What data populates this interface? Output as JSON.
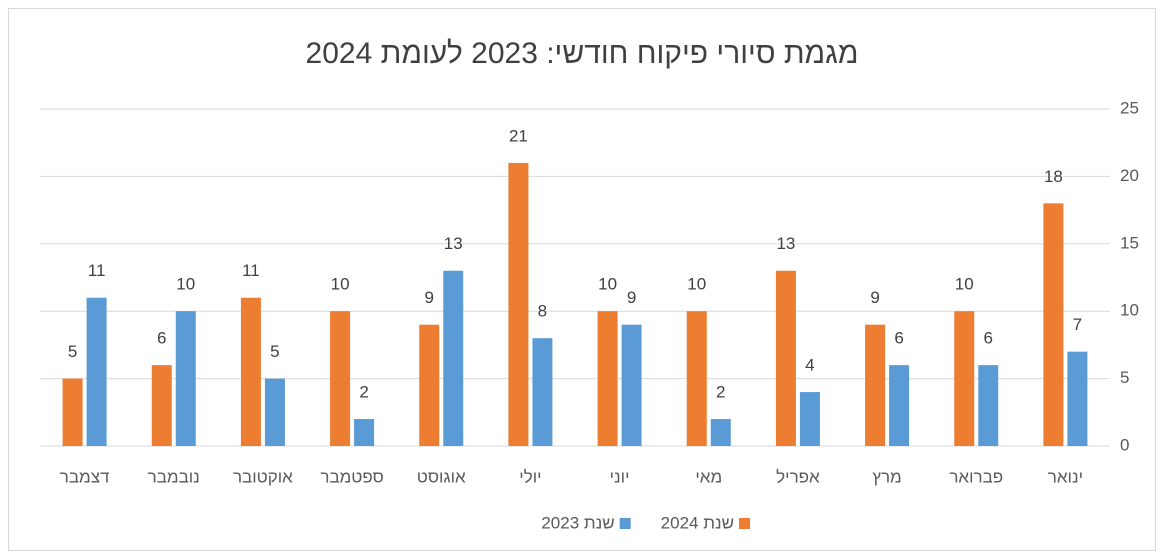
{
  "chart_data": {
    "type": "bar",
    "title": "מגמת סיורי פיקוח חודשי: 2023 לעומת 2024",
    "categories": [
      "ינואר",
      "פברואר",
      "מרץ",
      "אפריל",
      "מאי",
      "יוני",
      "יולי",
      "אוגוסט",
      "ספטמבר",
      "אוקטובר",
      "נובמבר",
      "דצמבר"
    ],
    "series": [
      {
        "name": "שנת 2024",
        "color": "#ed7d31",
        "values": [
          18,
          10,
          9,
          13,
          10,
          10,
          21,
          9,
          10,
          11,
          6,
          5
        ]
      },
      {
        "name": "שנת 2023",
        "color": "#5b9bd5",
        "values": [
          7,
          6,
          6,
          4,
          2,
          9,
          8,
          13,
          2,
          5,
          10,
          11
        ]
      }
    ],
    "ylim": [
      0,
      25
    ],
    "yticks": [
      0,
      5,
      10,
      15,
      20,
      25
    ],
    "grid": true,
    "x_reversed": true,
    "y_axis_side": "right",
    "legend": "bottom",
    "data_labels": true
  }
}
